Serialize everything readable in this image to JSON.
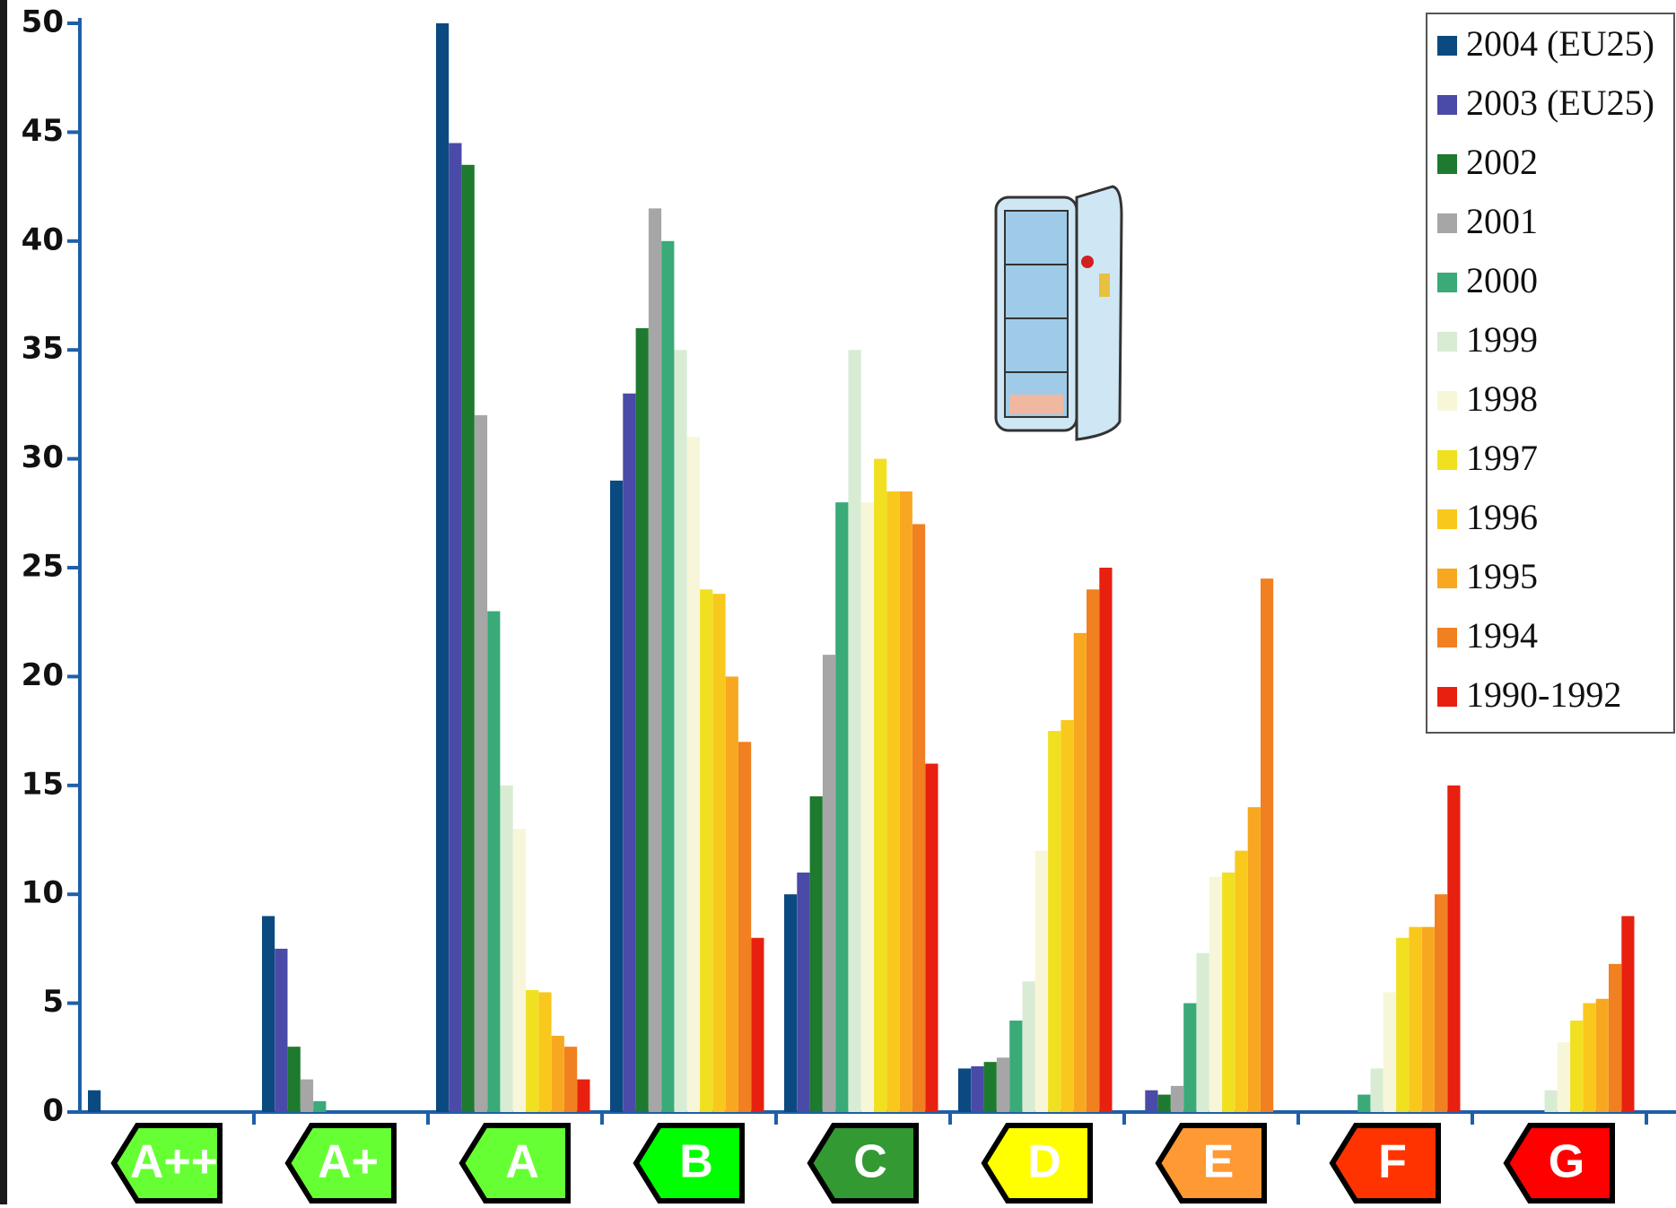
{
  "chart_data": {
    "type": "bar",
    "categories": [
      "A++",
      "A+",
      "A",
      "B",
      "C",
      "D",
      "E",
      "F",
      "G"
    ],
    "category_colors": [
      "#66ff33",
      "#66ff33",
      "#66ff33",
      "#00ff00",
      "#339933",
      "#ffff00",
      "#ff9933",
      "#ff3300",
      "#ff0000"
    ],
    "series": [
      {
        "name": "2004 (EU25)",
        "color": "#0b4a80",
        "values": [
          1,
          9,
          50,
          29,
          10,
          2,
          0,
          0,
          0
        ]
      },
      {
        "name": "2003 (EU25)",
        "color": "#4a4aa8",
        "values": [
          0,
          7.5,
          44.5,
          33,
          11,
          2.1,
          1,
          0,
          0
        ]
      },
      {
        "name": "2002",
        "color": "#1e7a2e",
        "values": [
          0,
          3,
          43.5,
          36,
          14.5,
          2.3,
          0.8,
          0,
          0
        ]
      },
      {
        "name": "2001",
        "color": "#a6a6a6",
        "values": [
          0,
          1.5,
          32,
          41.5,
          21,
          2.5,
          1.2,
          0,
          0
        ]
      },
      {
        "name": "2000",
        "color": "#3aaa78",
        "values": [
          0,
          0.5,
          23,
          40,
          28,
          4.2,
          5,
          0.8,
          0
        ]
      },
      {
        "name": "1999",
        "color": "#d8ecd4",
        "values": [
          0,
          0,
          15,
          35,
          35,
          6,
          7.3,
          2,
          1
        ]
      },
      {
        "name": "1998",
        "color": "#f8f6d8",
        "values": [
          0,
          0,
          13,
          31,
          28,
          12,
          10.8,
          5.5,
          3.2
        ]
      },
      {
        "name": "1997",
        "color": "#f0e020",
        "values": [
          0,
          0,
          5.6,
          24,
          30,
          17.5,
          11,
          8,
          4.2
        ]
      },
      {
        "name": "1996",
        "color": "#f8c81c",
        "values": [
          0,
          0,
          5.5,
          23.8,
          28.5,
          18,
          12,
          8.5,
          5
        ]
      },
      {
        "name": "1995",
        "color": "#f8a820",
        "values": [
          0,
          0,
          3.5,
          20,
          28.5,
          22,
          14,
          8.5,
          5.2
        ]
      },
      {
        "name": "1994",
        "color": "#f08020",
        "values": [
          0,
          0,
          3,
          17,
          27,
          24,
          24.5,
          10,
          6.8
        ]
      },
      {
        "name": "1990-1992",
        "color": "#e82010",
        "values": [
          0,
          0,
          1.5,
          8,
          16,
          25,
          0,
          15,
          9
        ]
      }
    ],
    "ylim": [
      0,
      50
    ],
    "yticks": [
      0,
      5,
      10,
      15,
      20,
      25,
      30,
      35,
      40,
      45,
      50
    ],
    "legend": "top-right",
    "axis_color": "#1f5fa8"
  }
}
